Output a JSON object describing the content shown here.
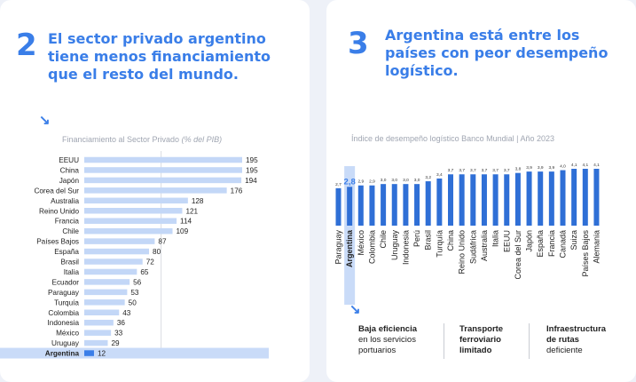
{
  "left": {
    "number": "2",
    "title_lines": [
      "El sector privado argentino",
      "tiene menos financiamiento",
      "que el resto del mundo."
    ],
    "arrow": "↘",
    "subtitle": "Financiamiento al Sector Privado",
    "subtitle_unit": "(% del PIB)"
  },
  "right": {
    "number": "3",
    "title_lines": [
      "Argentina está entre los",
      "países con peor desempeño",
      "logístico."
    ],
    "arrow": "↘",
    "subtitle": "Índice de desempeño logístico Banco Mundial | Año 2023",
    "footnotes": [
      {
        "bold": [
          "Baja eficiencia"
        ],
        "text": [
          "en los servicios",
          "portuarios"
        ]
      },
      {
        "bold": [
          "Transporte",
          "ferroviario",
          "limitado"
        ],
        "text": []
      },
      {
        "bold": [
          "Infraestructura",
          "de rutas"
        ],
        "text": [
          "deficiente"
        ]
      }
    ]
  },
  "colors": {
    "accent": "#3a7ee8",
    "bar": "#c3d7f7",
    "highlight_row": "#c9dbf8",
    "highlight_bar": "#3a7ee8",
    "col_bar": "#2f6fd6"
  },
  "chart_data": [
    {
      "type": "bar",
      "orientation": "horizontal",
      "title": "Financiamiento al Sector Privado (% del PIB)",
      "categories": [
        "EEUU",
        "China",
        "Japón",
        "Corea del Sur",
        "Australia",
        "Reino Unido",
        "Francia",
        "Chile",
        "Países Bajos",
        "España",
        "Brasil",
        "Italia",
        "Ecuador",
        "Paraguay",
        "Turquía",
        "Colombia",
        "Indonesia",
        "México",
        "Uruguay",
        "Argentina"
      ],
      "values": [
        195,
        195,
        194,
        176,
        128,
        121,
        114,
        109,
        87,
        80,
        72,
        65,
        56,
        53,
        50,
        43,
        36,
        33,
        29,
        12
      ],
      "highlight": "Argentina",
      "xlim": [
        0,
        200
      ]
    },
    {
      "type": "bar",
      "orientation": "vertical",
      "title": "Índice de desempeño logístico Banco Mundial | Año 2023",
      "categories": [
        "Paraguay",
        "Argentina",
        "México",
        "Colombia",
        "Chile",
        "Uruguay",
        "Indonesia",
        "Perú",
        "Brasil",
        "Turquía",
        "China",
        "Reino Unido",
        "Sudáfrica",
        "Australia",
        "Italia",
        "EEUU",
        "Corea del Sur",
        "Japón",
        "España",
        "Francia",
        "Canadá",
        "Suiza",
        "Países Bajos",
        "Alemania"
      ],
      "values": [
        2.7,
        2.8,
        2.9,
        2.9,
        3.0,
        3.0,
        3.0,
        3.0,
        3.2,
        3.4,
        3.7,
        3.7,
        3.7,
        3.7,
        3.7,
        3.7,
        3.8,
        3.9,
        3.9,
        3.9,
        4.0,
        4.1,
        4.1,
        4.1
      ],
      "labels": [
        "2,7",
        "2,8",
        "2,9",
        "2,9",
        "3,0",
        "3,0",
        "3,0",
        "3,0",
        "3,2",
        "3,4",
        "3,7",
        "3,7",
        "3,7",
        "3,7",
        "3,7",
        "3,7",
        "3,8",
        "3,9",
        "3,9",
        "3,9",
        "4,0",
        "4,1",
        "4,1",
        "4,1"
      ],
      "highlight": "Argentina",
      "ylim": [
        0,
        4.1
      ]
    }
  ]
}
